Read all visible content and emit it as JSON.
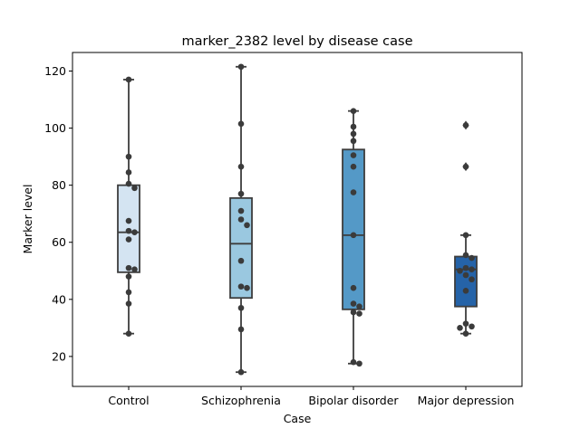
{
  "chart_data": {
    "type": "box",
    "title": "marker_2382 level by disease case",
    "xlabel": "Case",
    "ylabel": "Marker level",
    "ylim": [
      9.5,
      126.5
    ],
    "yticks": [
      20,
      40,
      60,
      80,
      100,
      120
    ],
    "categories": [
      "Control",
      "Schizophrenia",
      "Bipolar disorder",
      "Major depression"
    ],
    "colors": [
      "#d4e4f2",
      "#9ac8e0",
      "#5499c7",
      "#2563a8"
    ],
    "boxes": [
      {
        "whisker_low": 28,
        "q1": 49.5,
        "median": 63.5,
        "q3": 80,
        "whisker_high": 117,
        "outliers": []
      },
      {
        "whisker_low": 14.5,
        "q1": 40.5,
        "median": 59.5,
        "q3": 75.5,
        "whisker_high": 121.5,
        "outliers": []
      },
      {
        "whisker_low": 17.5,
        "q1": 36.5,
        "median": 62.5,
        "q3": 92.5,
        "whisker_high": 106,
        "outliers": []
      },
      {
        "whisker_low": 28,
        "q1": 37.5,
        "median": 50.5,
        "q3": 55,
        "whisker_high": 62.5,
        "outliers": [
          86.5,
          101
        ]
      }
    ],
    "points": [
      [
        117,
        90,
        84.5,
        80.5,
        79,
        67.5,
        64,
        63.5,
        61,
        51,
        50.5,
        48,
        42.5,
        38.5,
        28
      ],
      [
        121.5,
        101.5,
        86.5,
        77,
        71,
        68,
        66,
        53.5,
        44.5,
        44,
        37,
        29.5,
        14.5
      ],
      [
        106,
        100.5,
        98,
        95.5,
        90.5,
        86.5,
        77.5,
        62.5,
        44,
        38.5,
        37.5,
        35.5,
        35,
        18,
        17.5
      ],
      [
        101,
        86.5,
        62.5,
        55.5,
        54.5,
        51,
        50.5,
        50,
        48.5,
        47,
        43,
        31.5,
        30.5,
        30,
        28
      ]
    ]
  }
}
